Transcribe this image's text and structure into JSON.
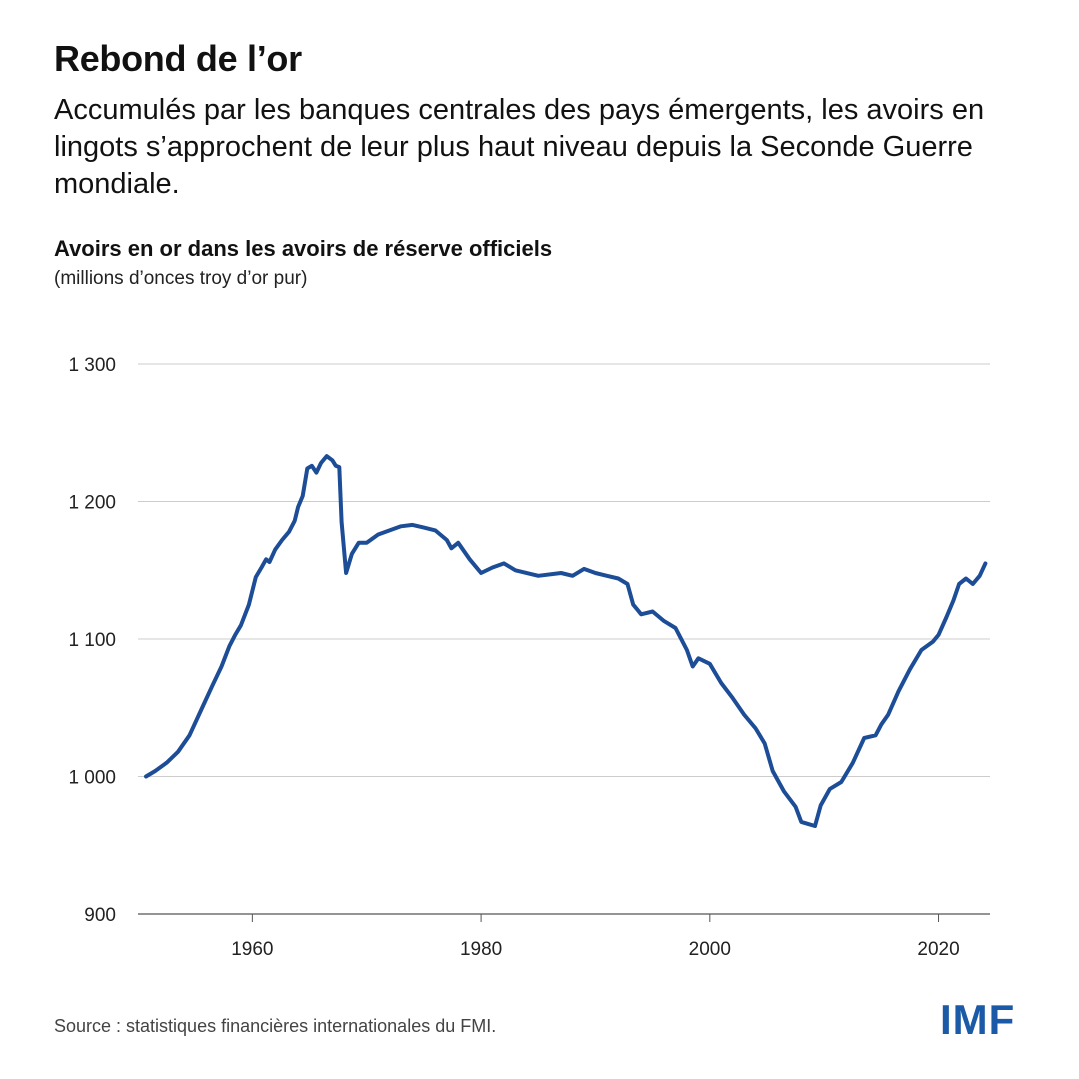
{
  "header": {
    "title": "Rebond de l’or",
    "subtitle": "Accumulés par les banques centrales des pays émergents, les avoirs en lingots s’approchent de leur plus haut niveau depuis la Seconde Guerre mondiale."
  },
  "chart_data": {
    "type": "line",
    "title": "Avoirs en or dans les avoirs de réserve officiels",
    "subtitle": "(millions d’onces troy d’or pur)",
    "xlabel": "",
    "ylabel": "",
    "xlim": [
      1950,
      2024.5
    ],
    "ylim": [
      900,
      1300
    ],
    "yticks": [
      900,
      1000,
      1100,
      1200,
      1300
    ],
    "ytick_labels": [
      "900",
      "1 000",
      "1 100",
      "1 200",
      "1 300"
    ],
    "xticks": [
      1960,
      1980,
      2000,
      2020
    ],
    "xtick_labels": [
      "1960",
      "1980",
      "2000",
      "2020"
    ],
    "grid": true,
    "line_color": "#1c4d96",
    "series": [
      {
        "x": [
          1950.7,
          1951.5,
          1952.5,
          1953.5,
          1954.5,
          1955.5,
          1956.5,
          1957.3,
          1958,
          1958.5,
          1959,
          1959.7,
          1960.3,
          1960.8,
          1961.2,
          1961.5,
          1962,
          1962.6,
          1963.2,
          1963.7,
          1964,
          1964.4,
          1964.8,
          1965.2,
          1965.6,
          1966,
          1966.5,
          1967,
          1967.3,
          1967.6,
          1967.8,
          1968.2,
          1968.7,
          1969.3,
          1970,
          1971,
          1972,
          1973,
          1974,
          1975,
          1976,
          1977,
          1977.4,
          1978,
          1979,
          1980,
          1981,
          1982,
          1983,
          1985,
          1987,
          1988,
          1989,
          1990,
          1991,
          1992,
          1992.8,
          1993.3,
          1994,
          1995,
          1996,
          1997,
          1998,
          1998.5,
          1999,
          2000,
          2001,
          2002,
          2003,
          2004,
          2004.8,
          2005.5,
          2006.5,
          2007.5,
          2008,
          2008.4,
          2009.2,
          2009.7,
          2010.5,
          2011.5,
          2012.5,
          2013.5,
          2014.5,
          2015,
          2015.6,
          2016.5,
          2017.5,
          2018.5,
          2019.5,
          2020,
          2020.7,
          2021.3,
          2021.8,
          2022.4,
          2023,
          2023.6,
          2024.1
        ],
        "values": [
          1000,
          1004,
          1010,
          1018,
          1030,
          1048,
          1066,
          1080,
          1095,
          1103,
          1110,
          1125,
          1145,
          1152,
          1158,
          1156,
          1165,
          1172,
          1178,
          1186,
          1196,
          1204,
          1224,
          1226,
          1221,
          1228,
          1233,
          1230,
          1226,
          1225,
          1185,
          1148,
          1162,
          1170,
          1170,
          1176,
          1179,
          1182,
          1183,
          1181,
          1179,
          1172,
          1166,
          1170,
          1158,
          1148,
          1152,
          1155,
          1150,
          1146,
          1148,
          1146,
          1151,
          1148,
          1146,
          1144,
          1140,
          1125,
          1118,
          1120,
          1113,
          1108,
          1092,
          1080,
          1086,
          1082,
          1068,
          1057,
          1045,
          1035,
          1024,
          1004,
          989,
          978,
          967,
          966,
          964,
          979,
          991,
          996,
          1010,
          1028,
          1030,
          1038,
          1045,
          1062,
          1078,
          1092,
          1098,
          1103,
          1116,
          1128,
          1140,
          1144,
          1140,
          1146,
          1155
        ]
      }
    ]
  },
  "footer": {
    "source": "Source : statistiques financières internationales du FMI.",
    "logo_text": "IMF"
  }
}
